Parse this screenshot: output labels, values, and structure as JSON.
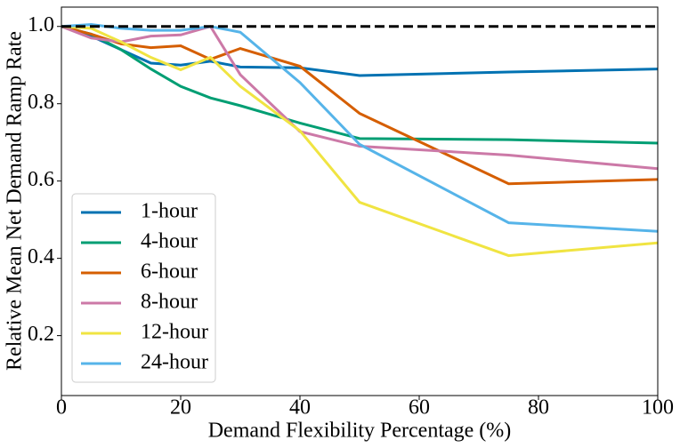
{
  "chart_data": {
    "type": "line",
    "x_label": "Demand Flexibility Percentage (%)",
    "y_label": "Relative Mean Net Demand Ramp Rate",
    "x": [
      0,
      5,
      10,
      15,
      20,
      25,
      30,
      40,
      50,
      75,
      100
    ],
    "series": [
      {
        "name": "1-hour",
        "color": "#0072b2",
        "values": [
          1.0,
          0.975,
          0.94,
          0.905,
          0.9,
          0.91,
          0.895,
          0.893,
          0.873,
          0.882,
          0.89
        ]
      },
      {
        "name": "4-hour",
        "color": "#009e73",
        "values": [
          1.0,
          0.98,
          0.94,
          0.89,
          0.845,
          0.815,
          0.795,
          0.75,
          0.71,
          0.707,
          0.698
        ]
      },
      {
        "name": "6-hour",
        "color": "#d55e00",
        "values": [
          1.0,
          0.98,
          0.955,
          0.945,
          0.95,
          0.915,
          0.943,
          0.897,
          0.775,
          0.593,
          0.604
        ]
      },
      {
        "name": "8-hour",
        "color": "#cc79a7",
        "values": [
          1.0,
          0.97,
          0.96,
          0.975,
          0.978,
          1.0,
          0.875,
          0.728,
          0.69,
          0.667,
          0.632
        ]
      },
      {
        "name": "12-hour",
        "color": "#f0e442",
        "values": [
          1.0,
          0.995,
          0.96,
          0.92,
          0.888,
          0.92,
          0.845,
          0.73,
          0.545,
          0.407,
          0.44
        ]
      },
      {
        "name": "24-hour",
        "color": "#56b4e9",
        "values": [
          1.0,
          1.005,
          0.995,
          0.99,
          0.99,
          1.0,
          0.985,
          0.855,
          0.695,
          0.492,
          0.47
        ]
      }
    ],
    "reference_line": 1.0,
    "xlim": [
      0,
      100
    ],
    "xticks": [
      0,
      20,
      40,
      60,
      80,
      100
    ],
    "ylim": [
      0.045,
      1.05
    ],
    "yticks": [
      {
        "value": 0.2,
        "label": "0.2"
      },
      {
        "value": 0.4,
        "label": "0.4"
      },
      {
        "value": 0.6,
        "label": "0.6"
      },
      {
        "value": 0.8,
        "label": "0.8"
      },
      {
        "value": 1.0,
        "label": "1.0"
      }
    ],
    "legend": "lower left",
    "grid": false
  }
}
